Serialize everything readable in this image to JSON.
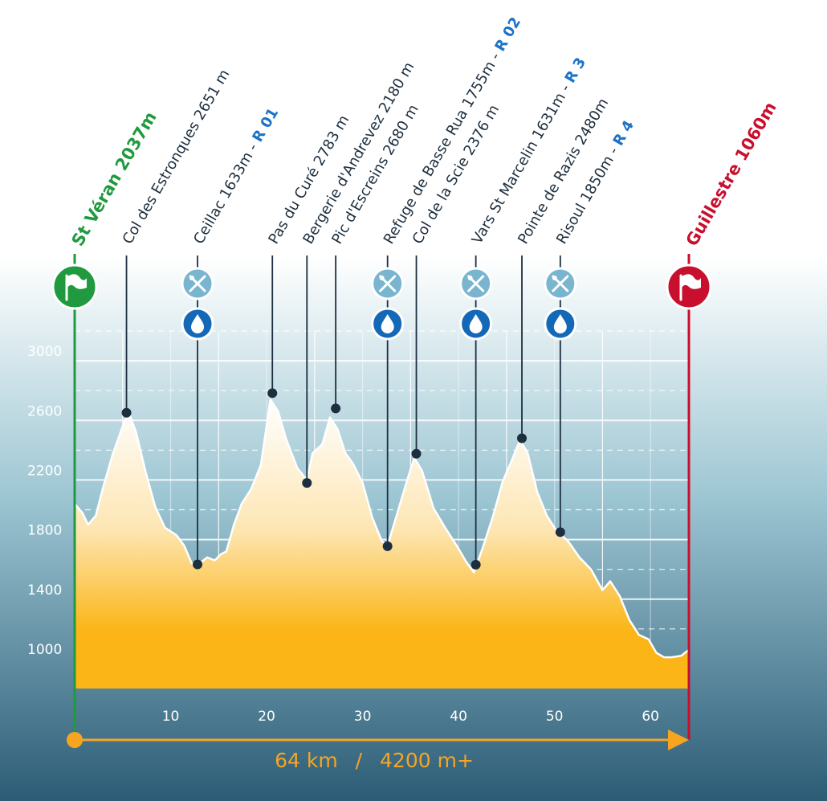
{
  "chart_data": {
    "type": "area",
    "title": "",
    "xlabel": "",
    "ylabel": "",
    "xlim": [
      0,
      64
    ],
    "ylim": [
      800,
      3200
    ],
    "x_ticks": [
      10,
      20,
      30,
      40,
      50,
      60
    ],
    "y_ticks": [
      1000,
      1400,
      1800,
      2200,
      2600,
      3000
    ],
    "grid": true,
    "profile": [
      [
        0,
        2040
      ],
      [
        0.8,
        1980
      ],
      [
        1.4,
        1900
      ],
      [
        2.2,
        1960
      ],
      [
        3,
        2160
      ],
      [
        4,
        2380
      ],
      [
        5,
        2560
      ],
      [
        5.6,
        2660
      ],
      [
        6.4,
        2520
      ],
      [
        7.4,
        2250
      ],
      [
        8.4,
        2020
      ],
      [
        9.4,
        1880
      ],
      [
        10.6,
        1830
      ],
      [
        11.4,
        1760
      ],
      [
        12.2,
        1640
      ],
      [
        13,
        1640
      ],
      [
        13.8,
        1680
      ],
      [
        14.6,
        1660
      ],
      [
        15.2,
        1700
      ],
      [
        15.8,
        1720
      ],
      [
        16.6,
        1900
      ],
      [
        17.4,
        2040
      ],
      [
        18.4,
        2140
      ],
      [
        19.4,
        2300
      ],
      [
        20.4,
        2740
      ],
      [
        21.2,
        2660
      ],
      [
        22,
        2480
      ],
      [
        23.2,
        2280
      ],
      [
        24.2,
        2200
      ],
      [
        24.8,
        2380
      ],
      [
        25.8,
        2440
      ],
      [
        26.6,
        2620
      ],
      [
        27.4,
        2540
      ],
      [
        28.2,
        2380
      ],
      [
        29,
        2310
      ],
      [
        30,
        2180
      ],
      [
        31,
        1950
      ],
      [
        32,
        1790
      ],
      [
        32.6,
        1760
      ],
      [
        33.4,
        1930
      ],
      [
        34.6,
        2190
      ],
      [
        35.4,
        2350
      ],
      [
        36.2,
        2260
      ],
      [
        37.4,
        2010
      ],
      [
        38.6,
        1880
      ],
      [
        39.8,
        1760
      ],
      [
        40.8,
        1650
      ],
      [
        41.6,
        1580
      ],
      [
        42.6,
        1760
      ],
      [
        43.6,
        1960
      ],
      [
        44.6,
        2190
      ],
      [
        45.6,
        2340
      ],
      [
        46.4,
        2470
      ],
      [
        47.2,
        2380
      ],
      [
        48.2,
        2120
      ],
      [
        49.2,
        1960
      ],
      [
        50.2,
        1860
      ],
      [
        51.4,
        1790
      ],
      [
        52.6,
        1680
      ],
      [
        53.8,
        1600
      ],
      [
        55,
        1460
      ],
      [
        55.8,
        1520
      ],
      [
        56.8,
        1420
      ],
      [
        57.8,
        1260
      ],
      [
        58.8,
        1160
      ],
      [
        59.8,
        1130
      ],
      [
        60.6,
        1040
      ],
      [
        61.4,
        1010
      ],
      [
        62.2,
        1010
      ],
      [
        63.2,
        1020
      ],
      [
        64,
        1060
      ]
    ],
    "waypoints": [
      {
        "x": 5.4,
        "elev": 2651,
        "name": "Col des Estronques 2651 m",
        "ref": "",
        "services": false
      },
      {
        "x": 12.8,
        "elev": 1633,
        "name": "Ceillac 1633m - ",
        "ref": "R 01",
        "services": true
      },
      {
        "x": 20.6,
        "elev": 2783,
        "name": "Pas du Curé 2783 m",
        "ref": "",
        "services": false
      },
      {
        "x": 24.2,
        "elev": 2180,
        "name": "Bergerie d'Andrevez 2180 m",
        "ref": "",
        "services": false
      },
      {
        "x": 27.2,
        "elev": 2680,
        "name": "Pic d'Escreins 2680 m",
        "ref": "",
        "services": false
      },
      {
        "x": 32.6,
        "elev": 1755,
        "name": "Refuge de Basse Rua 1755m - ",
        "ref": "R 02",
        "services": true
      },
      {
        "x": 35.6,
        "elev": 2376,
        "name": "Col de la Scie 2376 m",
        "ref": "",
        "services": false
      },
      {
        "x": 41.8,
        "elev": 1631,
        "name": "Vars St Marcelin 1631m - ",
        "ref": "R 3",
        "services": true
      },
      {
        "x": 46.6,
        "elev": 2480,
        "name": "Pointe de Razis 2480m",
        "ref": "",
        "services": false
      },
      {
        "x": 50.6,
        "elev": 1850,
        "name": "Risoul 1850m - ",
        "ref": "R 4",
        "services": true
      }
    ],
    "start": {
      "name": "St Véran",
      "elev_label": "2037m",
      "color": "#1f9a3f"
    },
    "finish": {
      "name": "Guillestre",
      "elev_label": "1060m",
      "color": "#c8102e"
    },
    "summary": {
      "distance": "64 km",
      "separator": "/",
      "climb": "4200 m+"
    },
    "colors": {
      "bg_top": "#ffffff",
      "bg_mid": "#9dc6d3",
      "bg_bottom": "#2c5c76",
      "fill_top": "#ffffff",
      "fill_bottom": "#fbb516",
      "marker": "#1d2f3f",
      "service_icon": "#7ab5cf",
      "water_icon": "#1468b8",
      "axis_arrow": "#f7a521"
    },
    "icons": [
      "flag-icon",
      "food-cutlery-icon",
      "water-drop-icon"
    ]
  }
}
